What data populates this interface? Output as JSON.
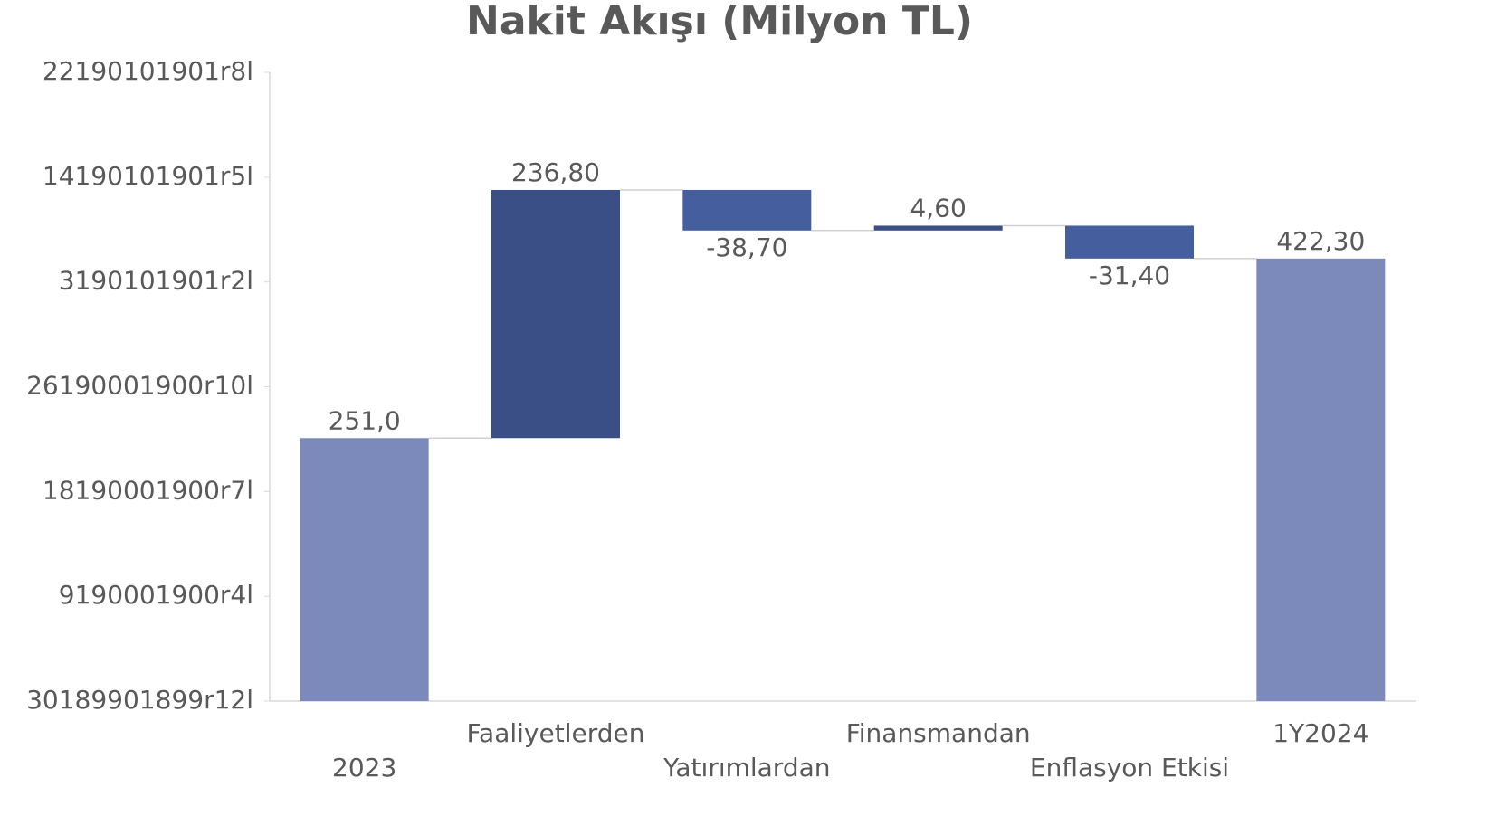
{
  "chart_data": {
    "type": "waterfall",
    "title": "Nakit Akışı (Milyon TL)",
    "categories": [
      "2023",
      "Faaliyetlerden",
      "Yatırımlardan",
      "Finansmandan",
      "Enflasyon Etkisi",
      "1Y2024"
    ],
    "values": [
      251.0,
      236.8,
      -38.7,
      4.6,
      -31.4,
      422.3
    ],
    "value_labels": [
      "251,0",
      "236,80",
      "-38,70",
      "4,60",
      "-31,40",
      "422,30"
    ],
    "totals": [
      0,
      5
    ],
    "colors": [
      "#7b8aba",
      "#3a4f86",
      "#445e9e",
      "#3a4f86",
      "#445e9e",
      "#7b8aba"
    ],
    "ylim": [
      0,
      600
    ],
    "yticks": [
      {
        "value": 0,
        "label": "30189901899r12l"
      },
      {
        "value": 100,
        "label": "9190001900r4l"
      },
      {
        "value": 200,
        "label": "18190001900r7l"
      },
      {
        "value": 300,
        "label": "26190001900r10l"
      },
      {
        "value": 400,
        "label": "3190101901r2l"
      },
      {
        "value": 500,
        "label": "14190101901r5l"
      },
      {
        "value": 600,
        "label": "22190101901r8l"
      }
    ]
  }
}
